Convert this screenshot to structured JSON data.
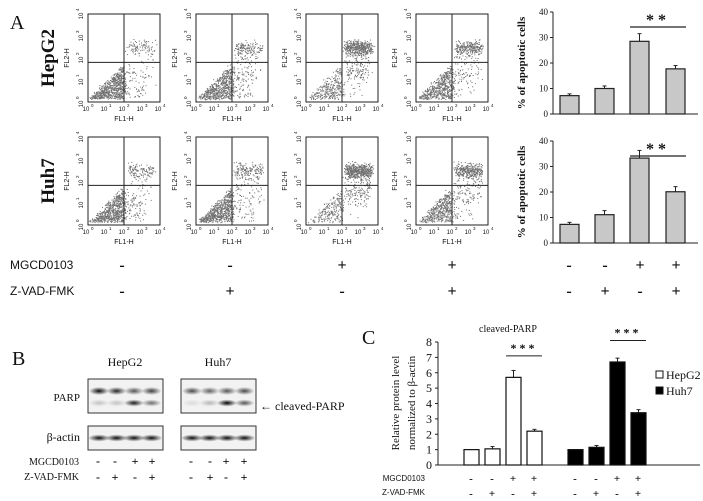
{
  "panels": {
    "a": "A",
    "b": "B",
    "c": "C"
  },
  "flow": {
    "rows": [
      "HepG2",
      "Huh7"
    ],
    "x_axis_label": "FL1-H",
    "y_axis_label": "FL2-H",
    "tick_labels": [
      "10",
      "10",
      "10",
      "10",
      "10"
    ],
    "tick_exponents": [
      "0",
      "1",
      "2",
      "3",
      "4"
    ]
  },
  "treatments": {
    "labels": [
      "MGCD0103",
      "Z-VAD-FMK"
    ],
    "mgcd": [
      "-",
      "-",
      "+",
      "+"
    ],
    "zvad": [
      "-",
      "+",
      "-",
      "+"
    ]
  },
  "blot": {
    "cell_lines": [
      "HepG2",
      "Huh7"
    ],
    "rows": [
      "PARP",
      "β-actin"
    ],
    "annotation": "← cleaved-PARP"
  },
  "chart_data": [
    {
      "type": "bar",
      "title": "",
      "cell_line": "HepG2",
      "ylabel": "% of apoptotic cells",
      "ylim": [
        0,
        40
      ],
      "yticks": [
        "0",
        "10",
        "20",
        "30",
        "40"
      ],
      "values": [
        7.2,
        10.0,
        28.5,
        17.7
      ],
      "errors": [
        0.7,
        1.0,
        3.0,
        1.3
      ],
      "significance": "**",
      "color": "#c8c8c8"
    },
    {
      "type": "bar",
      "title": "",
      "cell_line": "Huh7",
      "ylabel": "% of apoptotic cells",
      "ylim": [
        0,
        40
      ],
      "yticks": [
        "0",
        "10",
        "20",
        "30",
        "40"
      ],
      "values": [
        7.3,
        11.1,
        33.3,
        20.1
      ],
      "errors": [
        0.8,
        1.6,
        3.0,
        2.0
      ],
      "significance": "**",
      "color": "#c8c8c8"
    },
    {
      "type": "bar",
      "title": "cleaved-PARP",
      "ylabel": [
        "Relative protein level",
        "normalized to β-actin"
      ],
      "ylim": [
        0,
        8
      ],
      "yticks": [
        "0",
        "1",
        "2",
        "3",
        "4",
        "5",
        "6",
        "7",
        "8"
      ],
      "series": [
        {
          "name": "HepG2",
          "values": [
            1.0,
            1.05,
            5.7,
            2.2
          ],
          "errors": [
            0,
            0.15,
            0.45,
            0.12
          ],
          "color": "#ffffff"
        },
        {
          "name": "Huh7",
          "values": [
            1.0,
            1.15,
            6.7,
            3.4
          ],
          "errors": [
            0,
            0.12,
            0.25,
            0.2
          ],
          "color": "#000000"
        }
      ],
      "significance": "***",
      "legend": "right"
    }
  ]
}
